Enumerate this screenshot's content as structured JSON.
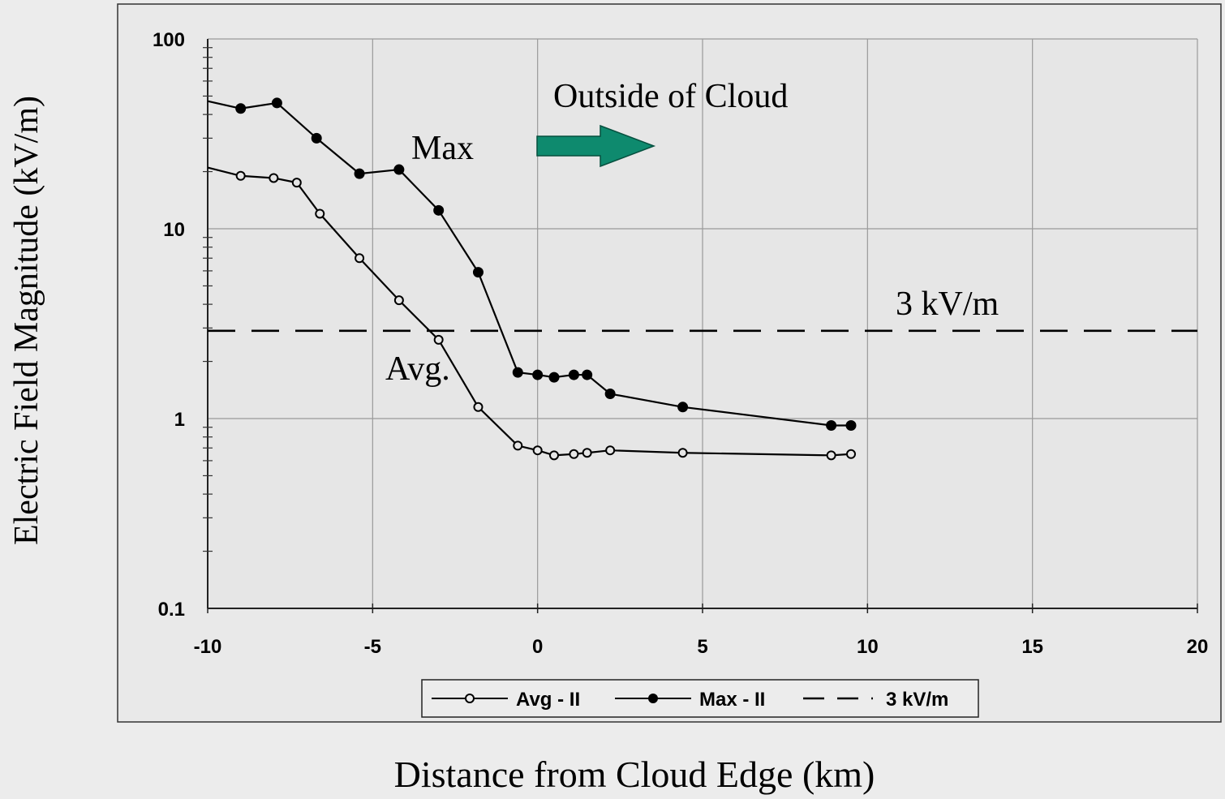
{
  "chart_data": {
    "type": "line",
    "title": "",
    "xlabel": "Distance from Cloud Edge (km)",
    "ylabel": "Electric Field Magnitude (kV/m)",
    "xlim": [
      -10,
      20
    ],
    "ylim": [
      0.1,
      100
    ],
    "y_scale": "log",
    "grid": true,
    "x_ticks": [
      -10,
      -5,
      0,
      5,
      10,
      15,
      20
    ],
    "x_tick_labels": [
      "-10",
      "-5",
      "0",
      "5",
      "10",
      "15",
      "20"
    ],
    "y_ticks": [
      0.1,
      1,
      10,
      100
    ],
    "y_tick_labels": [
      "0.1",
      "1",
      "10",
      "100"
    ],
    "legend_position": "bottom-center",
    "series": [
      {
        "name": "Avg - II",
        "marker": "open-circle",
        "color": "#000000",
        "x": [
          -10,
          -9,
          -8,
          -7.3,
          -6.6,
          -5.4,
          -4.2,
          -3,
          -1.8,
          -0.6,
          0,
          0.5,
          1.1,
          1.5,
          2.2,
          4.4,
          8.9,
          9.5
        ],
        "y": [
          21,
          19,
          18.5,
          17.5,
          12,
          7,
          4.2,
          2.6,
          1.15,
          0.72,
          0.68,
          0.64,
          0.65,
          0.66,
          0.68,
          0.66,
          0.64,
          0.65
        ]
      },
      {
        "name": "Max - II",
        "marker": "filled-circle",
        "color": "#000000",
        "x": [
          -10,
          -9,
          -7.9,
          -6.7,
          -5.4,
          -4.2,
          -3,
          -1.8,
          -0.6,
          0,
          0.5,
          1.1,
          1.5,
          2.2,
          4.4,
          8.9,
          9.5
        ],
        "y": [
          47,
          43,
          46,
          30,
          19.5,
          20.5,
          12.5,
          5.9,
          1.75,
          1.7,
          1.65,
          1.7,
          1.7,
          1.35,
          1.15,
          0.92,
          0.92
        ]
      },
      {
        "name": "3 kV/m",
        "style": "dashed",
        "color": "#000000",
        "x": [
          -10,
          20
        ],
        "y": [
          2.9,
          2.9
        ]
      }
    ],
    "annotations": {
      "outside": "Outside of Cloud",
      "max": "Max",
      "avg": "Avg.",
      "threshold": "3 kV/m"
    },
    "arrow_color": "#0e8a6e"
  }
}
